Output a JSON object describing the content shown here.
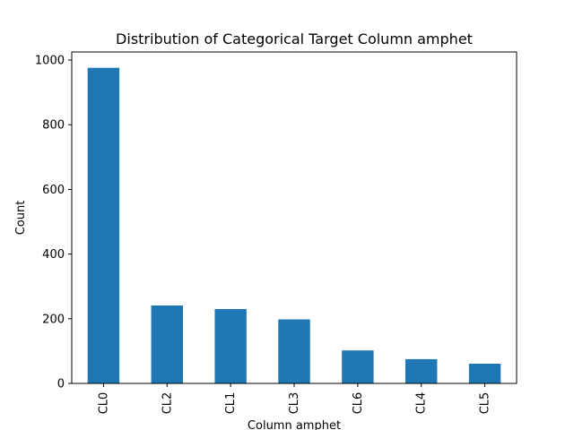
{
  "chart_data": {
    "type": "bar",
    "title": "Distribution of Categorical Target Column amphet",
    "xlabel": "Column amphet",
    "ylabel": "Count",
    "categories": [
      "CL0",
      "CL2",
      "CL1",
      "CL3",
      "CL6",
      "CL4",
      "CL5"
    ],
    "values": [
      976,
      241,
      230,
      198,
      102,
      75,
      61
    ],
    "ylim": [
      0,
      1025
    ],
    "yticks": [
      0,
      200,
      400,
      600,
      800,
      1000
    ],
    "grid": false,
    "bar_color": "#1f77b4"
  }
}
